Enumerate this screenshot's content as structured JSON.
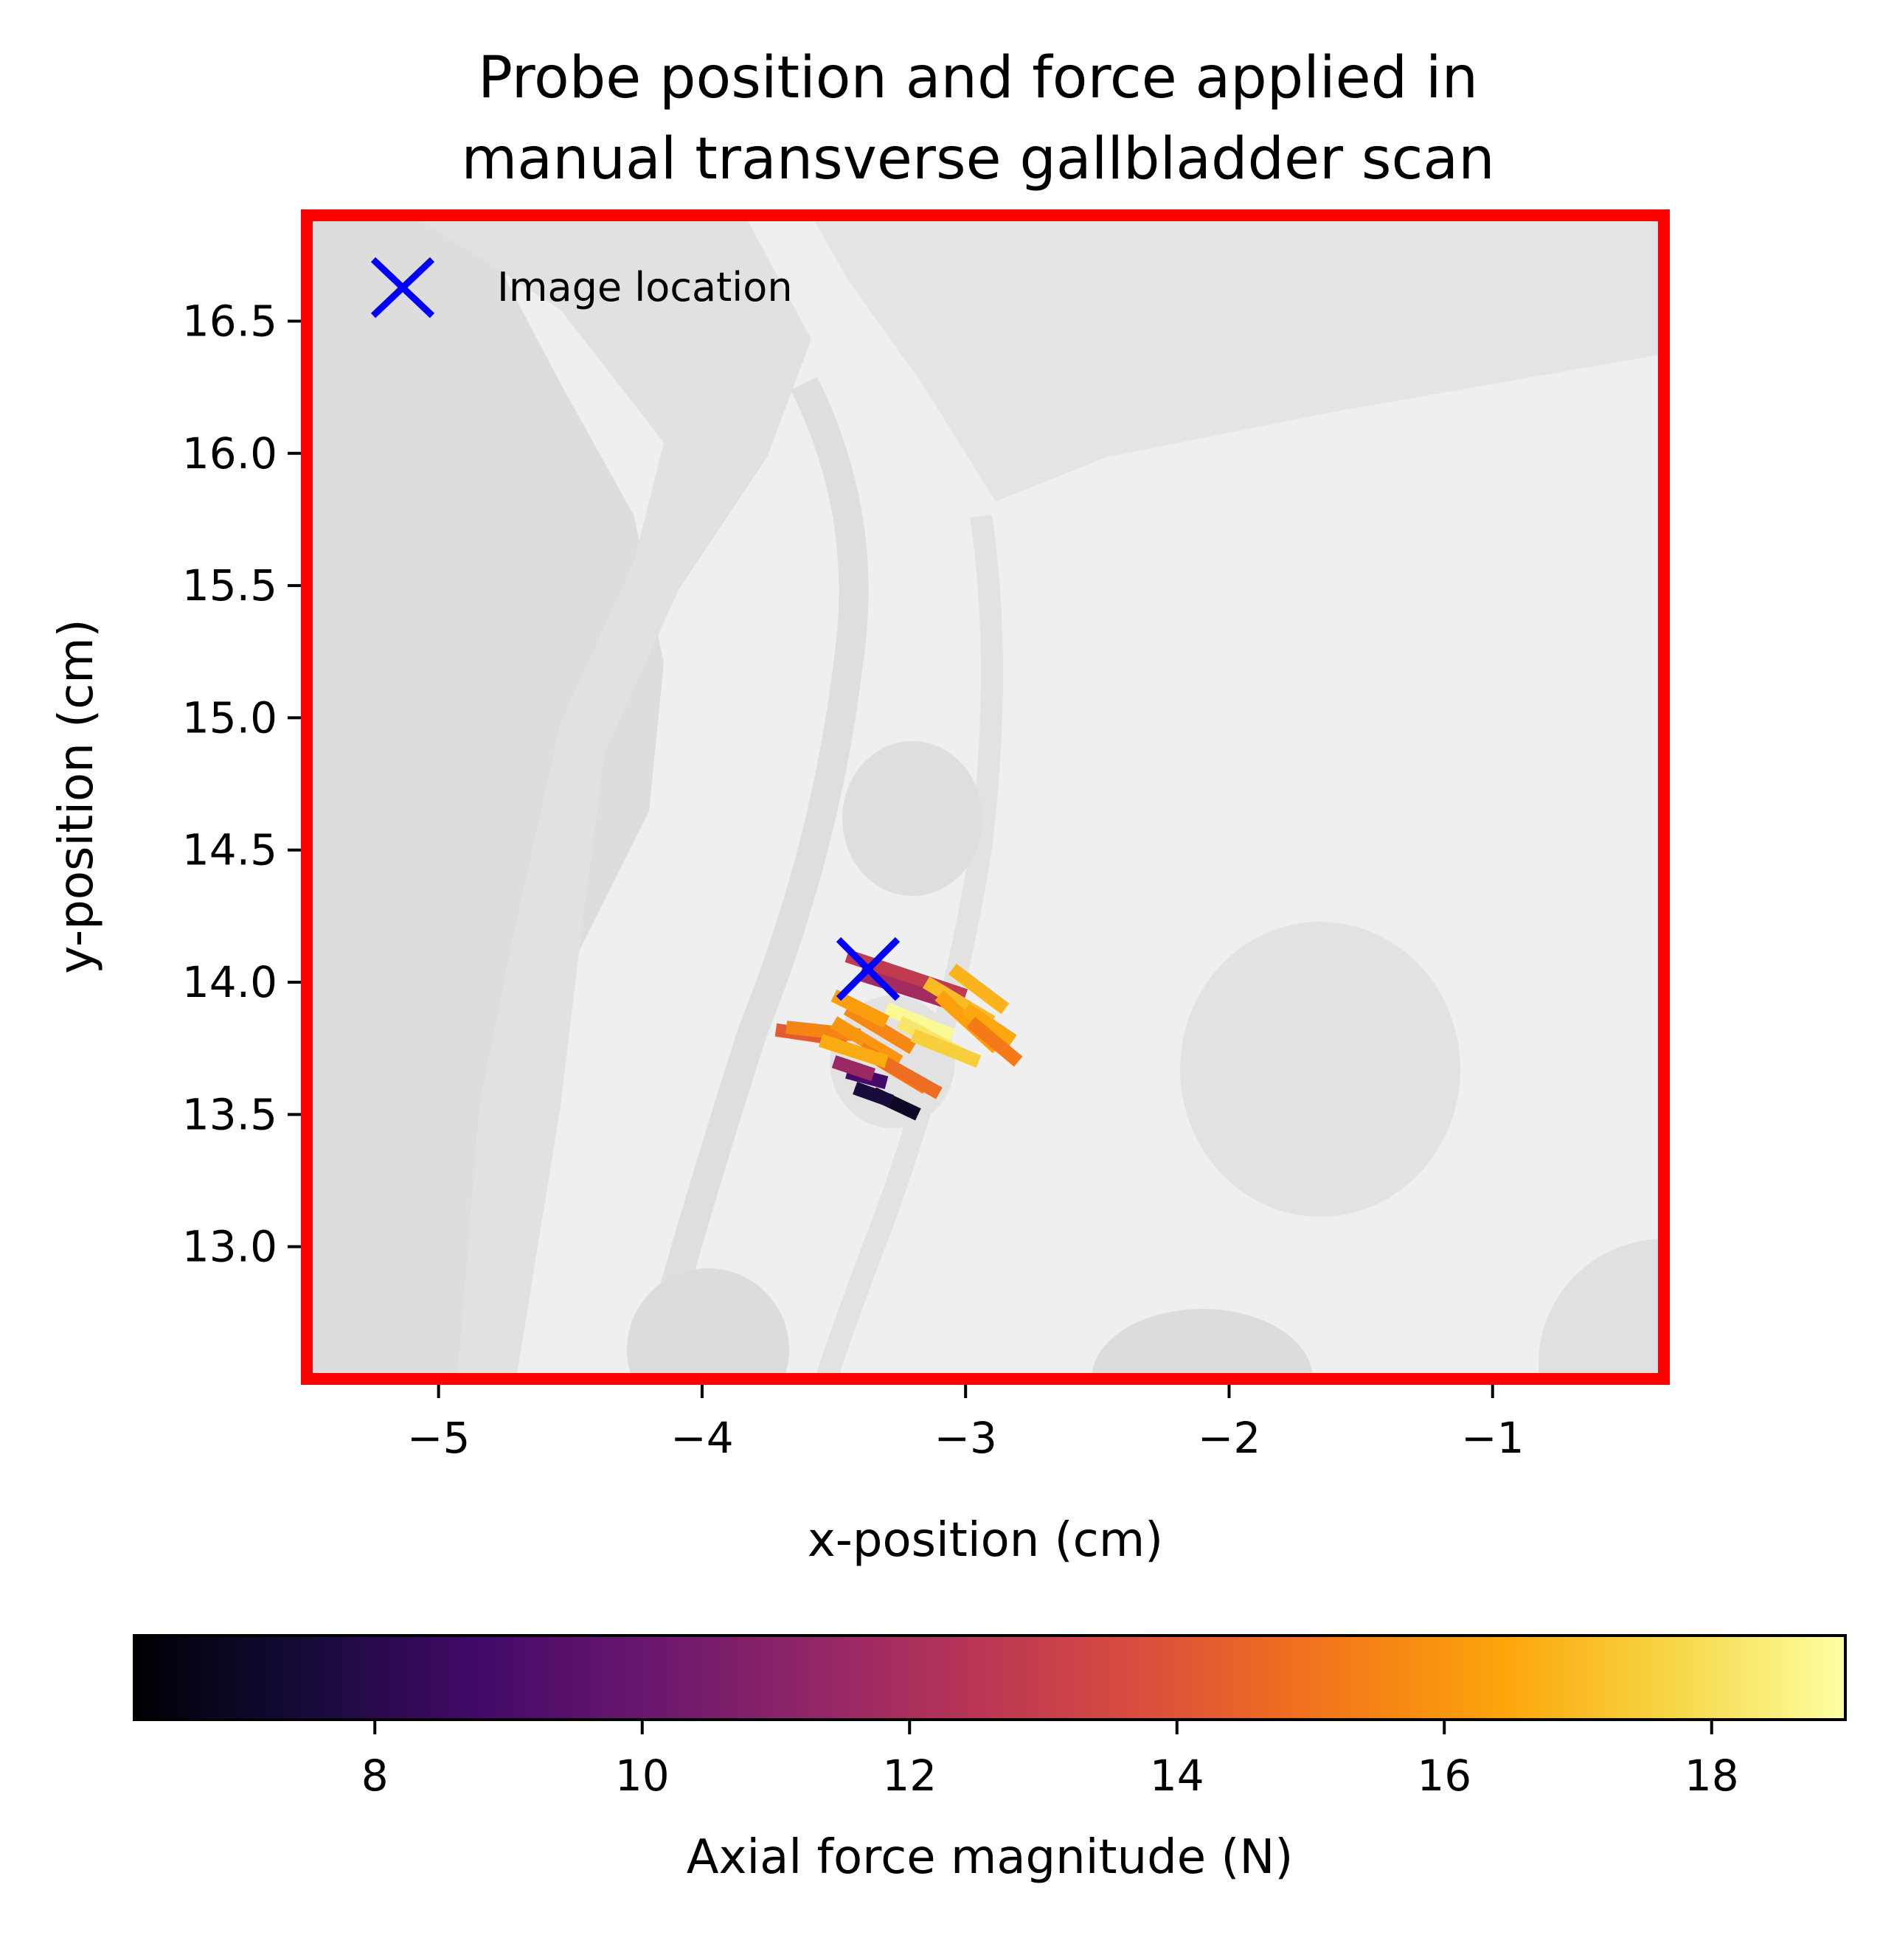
{
  "chart_data": {
    "type": "scatter",
    "title": [
      "Probe position and force applied in",
      "manual transverse gallbladder scan"
    ],
    "xlabel": "x-position (cm)",
    "ylabel": "y-position (cm)",
    "xlim": [
      -5.5,
      -0.35
    ],
    "ylim": [
      12.5,
      16.9
    ],
    "x_ticks": [
      -5,
      -4,
      -3,
      -2,
      -1
    ],
    "x_tick_labels": [
      "−5",
      "−4",
      "−3",
      "−2",
      "−1"
    ],
    "y_ticks": [
      13.0,
      13.5,
      14.0,
      14.5,
      15.0,
      15.5,
      16.0,
      16.5
    ],
    "y_tick_labels": [
      "13.0",
      "13.5",
      "14.0",
      "14.5",
      "15.0",
      "15.5",
      "16.0",
      "16.5"
    ],
    "grid": false,
    "legend": {
      "position": "top-left",
      "entries": [
        {
          "label": "Image location",
          "marker": "x",
          "color": "#0000ff"
        }
      ]
    },
    "image_location": {
      "x": -3.37,
      "y": 14.05
    },
    "frame_color": "#ff0000",
    "background_image": "grayscale anatomical slice (pixelated)",
    "colorbar": {
      "label": "Axial force magnitude (N)",
      "orientation": "horizontal",
      "colormap": "inferno",
      "range": [
        6.2,
        19.0
      ],
      "ticks": [
        8,
        10,
        12,
        14,
        16,
        18
      ],
      "tick_labels": [
        "8",
        "10",
        "12",
        "14",
        "16",
        "18"
      ]
    },
    "probe_segments": [
      {
        "x1": -3.35,
        "y1": 13.58,
        "x2": -3.18,
        "y2": 13.5,
        "force": 7.0
      },
      {
        "x1": -3.42,
        "y1": 13.6,
        "x2": -3.28,
        "y2": 13.55,
        "force": 7.6
      },
      {
        "x1": -3.45,
        "y1": 13.66,
        "x2": -3.3,
        "y2": 13.62,
        "force": 8.8
      },
      {
        "x1": -3.5,
        "y1": 13.7,
        "x2": -3.35,
        "y2": 13.65,
        "force": 11.5
      },
      {
        "x1": -3.45,
        "y1": 14.1,
        "x2": -3.0,
        "y2": 13.95,
        "force": 12.8
      },
      {
        "x1": -3.4,
        "y1": 14.03,
        "x2": -3.05,
        "y2": 13.92,
        "force": 11.8
      },
      {
        "x1": -3.72,
        "y1": 13.82,
        "x2": -3.45,
        "y2": 13.78,
        "force": 14.2
      },
      {
        "x1": -3.68,
        "y1": 13.83,
        "x2": -3.4,
        "y2": 13.8,
        "force": 15.5
      },
      {
        "x1": -3.5,
        "y1": 13.85,
        "x2": -3.25,
        "y2": 13.7,
        "force": 16.0
      },
      {
        "x1": -3.45,
        "y1": 13.9,
        "x2": -3.2,
        "y2": 13.75,
        "force": 15.6
      },
      {
        "x1": -3.4,
        "y1": 13.75,
        "x2": -3.15,
        "y2": 13.6,
        "force": 15.3
      },
      {
        "x1": -3.35,
        "y1": 13.72,
        "x2": -3.1,
        "y2": 13.58,
        "force": 14.8
      },
      {
        "x1": -3.3,
        "y1": 13.9,
        "x2": -3.05,
        "y2": 13.8,
        "force": 18.8
      },
      {
        "x1": -3.25,
        "y1": 13.85,
        "x2": -3.0,
        "y2": 13.72,
        "force": 18.2
      },
      {
        "x1": -3.2,
        "y1": 13.8,
        "x2": -2.95,
        "y2": 13.7,
        "force": 17.5
      },
      {
        "x1": -3.15,
        "y1": 14.0,
        "x2": -2.9,
        "y2": 13.85,
        "force": 17.0
      },
      {
        "x1": -3.05,
        "y1": 14.05,
        "x2": -2.85,
        "y2": 13.9,
        "force": 16.8
      },
      {
        "x1": -3.1,
        "y1": 13.95,
        "x2": -2.88,
        "y2": 13.75,
        "force": 16.3
      },
      {
        "x1": -3.0,
        "y1": 13.9,
        "x2": -2.82,
        "y2": 13.78,
        "force": 16.5
      },
      {
        "x1": -2.98,
        "y1": 13.85,
        "x2": -2.8,
        "y2": 13.7,
        "force": 15.2
      },
      {
        "x1": -3.5,
        "y1": 13.95,
        "x2": -3.3,
        "y2": 13.85,
        "force": 16.2
      },
      {
        "x1": -3.55,
        "y1": 13.78,
        "x2": -3.3,
        "y2": 13.7,
        "force": 16.6
      }
    ]
  }
}
